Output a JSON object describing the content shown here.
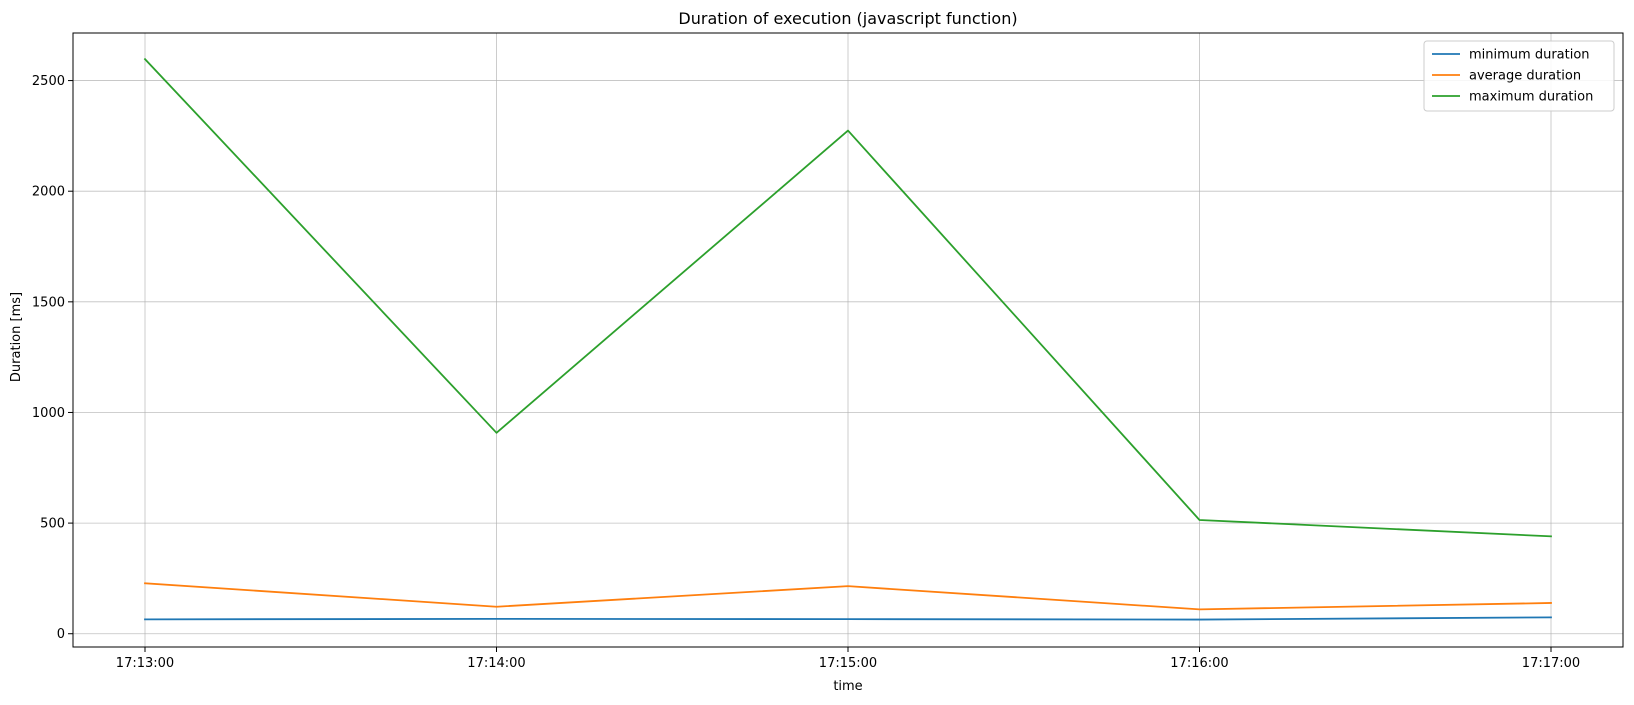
{
  "chart_data": {
    "type": "line",
    "title": "Duration of execution (javascript function)",
    "xlabel": "time",
    "ylabel": "Duration [ms]",
    "x": [
      "17:13:00",
      "17:14:00",
      "17:15:00",
      "17:16:00",
      "17:17:00"
    ],
    "ylim": [
      -60,
      2715
    ],
    "yticks": [
      0,
      500,
      1000,
      1500,
      2000,
      2500
    ],
    "grid": true,
    "legend_position": "top-right",
    "series": [
      {
        "name": "minimum duration",
        "color": "#1f77b4",
        "values": [
          65,
          67,
          66,
          64,
          74
        ]
      },
      {
        "name": "average duration",
        "color": "#ff7f0e",
        "values": [
          228,
          122,
          215,
          110,
          139
        ]
      },
      {
        "name": "maximum duration",
        "color": "#2ca02c",
        "values": [
          2597,
          908,
          2274,
          514,
          440
        ]
      }
    ]
  }
}
